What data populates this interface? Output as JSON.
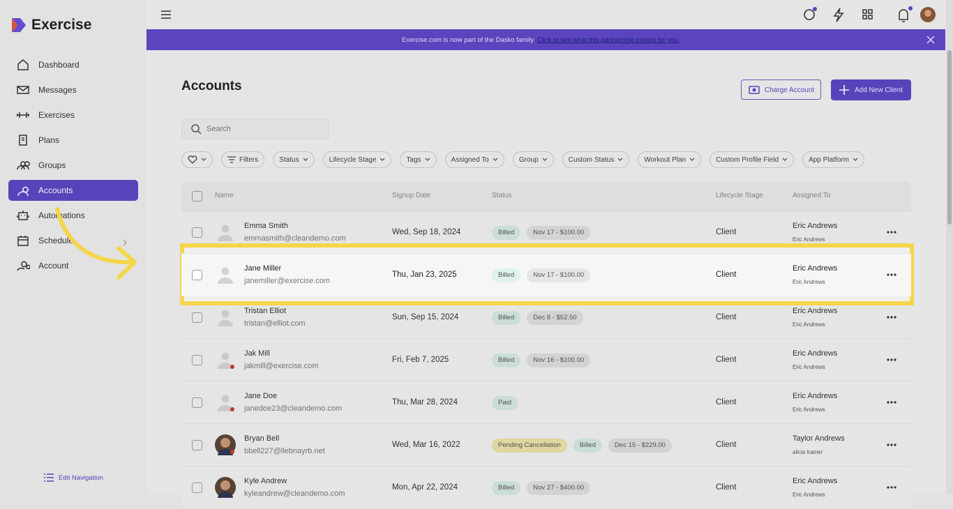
{
  "sidebar": {
    "logo": "Exercise",
    "nav": [
      "Dashboard",
      "Messages",
      "Exercises",
      "Plans",
      "Groups",
      "Accounts",
      "Automations",
      "Schedule",
      "Account"
    ],
    "active": 5,
    "edit_nav": "Edit Navigation"
  },
  "banner": {
    "text": "Exercise.com is now part of the Dasko family.",
    "link": "Click to see what this partnership means for you."
  },
  "page": {
    "title": "Accounts",
    "buttons": [
      "Charge Account",
      "Add New Client"
    ],
    "search_placeholder": "Search",
    "filters": [
      "Filters",
      "Status",
      "Lifecycle Stage",
      "Tags",
      "Assigned To",
      "Group",
      "Custom Status",
      "Workout Plan",
      "Custom Profile Field",
      "App Platform"
    ]
  },
  "table": {
    "columns": [
      "Name",
      "Signup Date",
      "Status",
      "Lifecycle Stage",
      "Assigned To"
    ],
    "highlighted_row": 1,
    "rows": [
      {
        "name": "Emma Smith",
        "email": "emmasmith@cleandemo.com",
        "signup": "Wed, Sep 18, 2024",
        "badges": [
          {
            "text": "Billed",
            "color": "#d3e8de"
          },
          {
            "text": "Nov 17 - $100.00",
            "color": "#dcdcdc"
          }
        ],
        "lifecycle": "Client",
        "assigned": "Eric Andrews",
        "assigned_sub": "Eric Andrews"
      },
      {
        "name": "Jane Miller",
        "email": "janemiller@exercise.com",
        "signup": "Thu, Jan 23, 2025",
        "badges": [
          {
            "text": "Billed",
            "color": "#dff3ec"
          },
          {
            "text": "Nov 17 - $100.00",
            "color": "#e6e6e6"
          }
        ],
        "lifecycle": "Client",
        "assigned": "Eric Andrews",
        "assigned_sub": "Eric Andrews"
      },
      {
        "name": "Tristan Elliot",
        "email": "tristan@elliot.com",
        "signup": "Sun, Sep 15, 2024",
        "badges": [
          {
            "text": "Billed",
            "color": "#d3e8de"
          },
          {
            "text": "Dec 8 - $52.50",
            "color": "#dcdcdc"
          }
        ],
        "lifecycle": "Client",
        "assigned": "Eric Andrews",
        "assigned_sub": "Eric Andrews"
      },
      {
        "name": "Jak Mill",
        "email": "jakmill@exercise.com",
        "signup": "Fri, Feb 7, 2025",
        "badges": [
          {
            "text": "Billed",
            "color": "#d3e8de"
          },
          {
            "text": "Nov 16 - $100.00",
            "color": "#dcdcdc"
          }
        ],
        "lifecycle": "Client",
        "assigned": "Eric Andrews",
        "assigned_sub": "Eric Andrews"
      },
      {
        "name": "Jane Doe",
        "email": "janedoe23@cleandemo.com",
        "signup": "Thu, Mar 28, 2024",
        "badges": [
          {
            "text": "Paid",
            "color": "#d3e8de"
          }
        ],
        "lifecycle": "Client",
        "assigned": "Eric Andrews",
        "assigned_sub": "Eric Andrews"
      },
      {
        "name": "Bryan Bell",
        "email": "bbell227@llebnayrb.net",
        "signup": "Wed, Mar 16, 2022",
        "badges": [
          {
            "text": "Pending Cancellation",
            "color": "#e8e0a8"
          },
          {
            "text": "Billed",
            "color": "#d3e8de"
          },
          {
            "text": "Dec 15 - $229.00",
            "color": "#dcdcdc"
          }
        ],
        "lifecycle": "Client",
        "assigned": "Taylor Andrews",
        "assigned_sub": "alicia trainer"
      },
      {
        "name": "Kyle Andrew",
        "email": "kyleandrew@cleandemo.com",
        "signup": "Mon, Apr 22, 2024",
        "badges": [
          {
            "text": "Billed",
            "color": "#d3e8de"
          },
          {
            "text": "Nov 27 - $400.00",
            "color": "#dcdcdc"
          }
        ],
        "lifecycle": "Client",
        "assigned": "Eric Andrews",
        "assigned_sub": "Eric Andrews"
      }
    ]
  }
}
